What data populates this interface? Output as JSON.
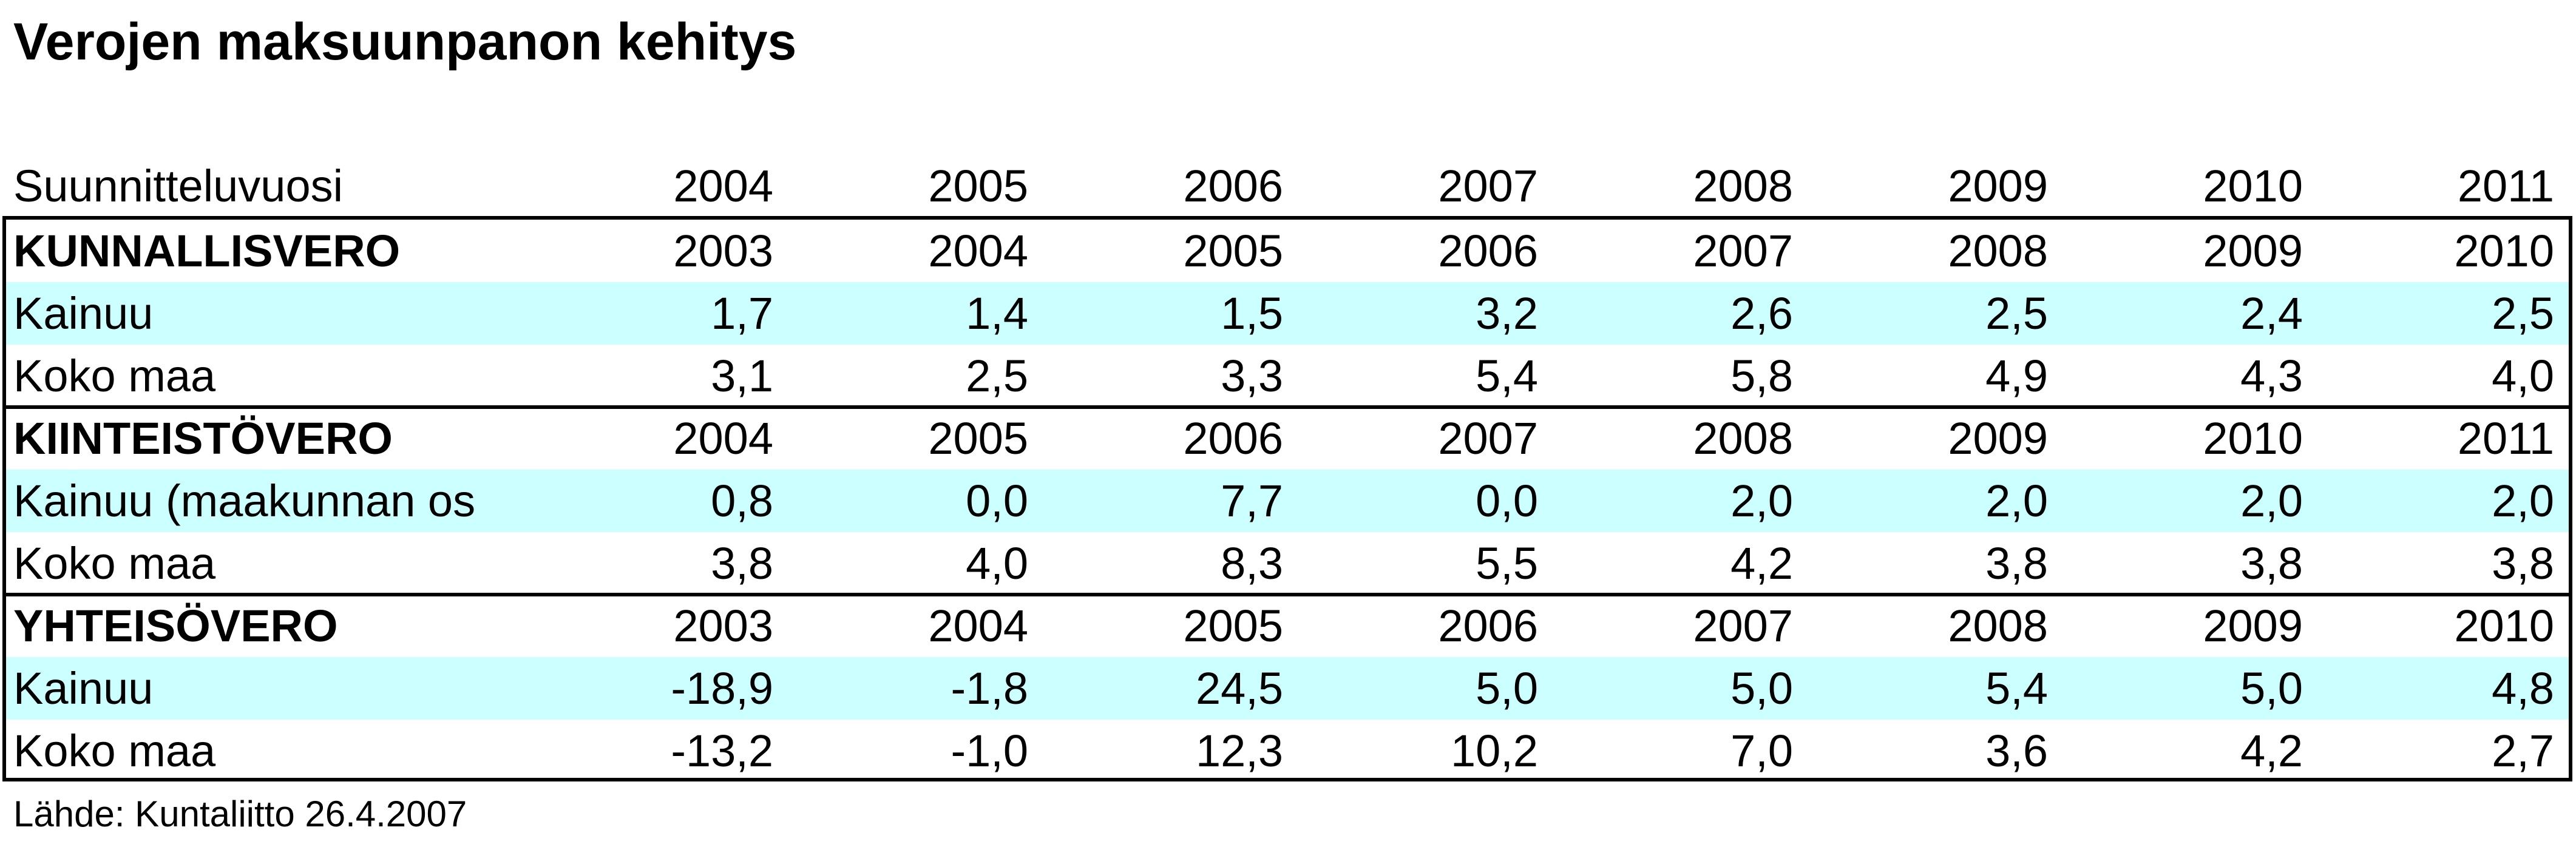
{
  "title": "Verojen maksuunpanon kehitys",
  "header": {
    "label": "Suunnitteluvuosi",
    "years": [
      "2004",
      "2005",
      "2006",
      "2007",
      "2008",
      "2009",
      "2010",
      "2011"
    ]
  },
  "sections": [
    {
      "name": "KUNNALLISVERO",
      "years": [
        "2003",
        "2004",
        "2005",
        "2006",
        "2007",
        "2008",
        "2009",
        "2010"
      ],
      "rows": [
        {
          "label": "Kainuu",
          "values": [
            "1,7",
            "1,4",
            "1,5",
            "3,2",
            "2,6",
            "2,5",
            "2,4",
            "2,5"
          ]
        },
        {
          "label": "Koko maa",
          "values": [
            "3,1",
            "2,5",
            "3,3",
            "5,4",
            "5,8",
            "4,9",
            "4,3",
            "4,0"
          ]
        }
      ]
    },
    {
      "name": "KIINTEISTÖVERO",
      "years": [
        "2004",
        "2005",
        "2006",
        "2007",
        "2008",
        "2009",
        "2010",
        "2011"
      ],
      "rows": [
        {
          "label": "Kainuu (maakunnan os",
          "values": [
            "0,8",
            "0,0",
            "7,7",
            "0,0",
            "2,0",
            "2,0",
            "2,0",
            "2,0"
          ]
        },
        {
          "label": "Koko maa",
          "values": [
            "3,8",
            "4,0",
            "8,3",
            "5,5",
            "4,2",
            "3,8",
            "3,8",
            "3,8"
          ]
        }
      ]
    },
    {
      "name": "YHTEISÖVERO",
      "years": [
        "2003",
        "2004",
        "2005",
        "2006",
        "2007",
        "2008",
        "2009",
        "2010"
      ],
      "rows": [
        {
          "label": "Kainuu",
          "values": [
            "-18,9",
            "-1,8",
            "24,5",
            "5,0",
            "5,0",
            "5,4",
            "5,0",
            "4,8"
          ]
        },
        {
          "label": "Koko maa",
          "values": [
            "-13,2",
            "-1,0",
            "12,3",
            "10,2",
            "7,0",
            "3,6",
            "4,2",
            "2,7"
          ]
        }
      ]
    }
  ],
  "source": "Lähde: Kuntaliitto 26.4.2007",
  "colors": {
    "highlight_row": "#ccffff",
    "border": "#000000"
  }
}
